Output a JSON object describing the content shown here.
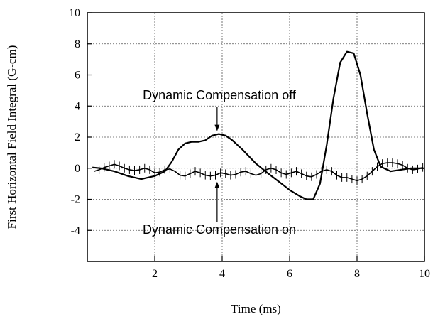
{
  "chart_data": {
    "type": "line",
    "title": "",
    "xlabel": "Time (ms)",
    "ylabel": "First Horizontal Field Integral (G-cm)",
    "xlim": [
      0,
      10
    ],
    "ylim": [
      -6,
      10
    ],
    "x_ticks": [
      2,
      4,
      6,
      8,
      10
    ],
    "x_tick_labels": [
      "2",
      "4",
      "6",
      "8",
      "10"
    ],
    "y_ticks": [
      -4,
      -2,
      0,
      2,
      4,
      6,
      8,
      10
    ],
    "y_tick_labels": [
      "-4",
      "-2",
      "0",
      "2",
      "4",
      "6",
      "8",
      "10"
    ],
    "grid": true,
    "legend": "none",
    "line_color": "#000000",
    "series": [
      {
        "marker": "none",
        "x": [
          0.15,
          0.4,
          0.8,
          1.2,
          1.6,
          2.0,
          2.3,
          2.5,
          2.7,
          2.9,
          3.1,
          3.3,
          3.5,
          3.7,
          3.9,
          4.1,
          4.3,
          4.6,
          5.0,
          5.4,
          5.7,
          6.0,
          6.3,
          6.5,
          6.7,
          6.9,
          7.1,
          7.3,
          7.5,
          7.7,
          7.9,
          8.1,
          8.3,
          8.5,
          8.7,
          9.0,
          9.3,
          9.6,
          10.0
        ],
        "y": [
          0.05,
          0.0,
          -0.2,
          -0.5,
          -0.7,
          -0.5,
          -0.2,
          0.4,
          1.2,
          1.6,
          1.7,
          1.7,
          1.8,
          2.1,
          2.2,
          2.1,
          1.8,
          1.2,
          0.3,
          -0.4,
          -0.9,
          -1.4,
          -1.8,
          -2.0,
          -2.0,
          -1.0,
          1.5,
          4.5,
          6.8,
          7.5,
          7.4,
          6.0,
          3.5,
          1.2,
          0.1,
          -0.2,
          -0.1,
          0.0,
          0.0
        ]
      },
      {
        "marker": "vertical-tick",
        "x": [
          0.2,
          0.35,
          0.5,
          0.65,
          0.8,
          0.95,
          1.1,
          1.25,
          1.4,
          1.55,
          1.7,
          1.85,
          2.0,
          2.15,
          2.3,
          2.45,
          2.6,
          2.75,
          2.9,
          3.05,
          3.2,
          3.35,
          3.5,
          3.65,
          3.8,
          3.95,
          4.1,
          4.25,
          4.4,
          4.55,
          4.7,
          4.85,
          5.0,
          5.15,
          5.3,
          5.45,
          5.6,
          5.75,
          5.9,
          6.05,
          6.2,
          6.35,
          6.5,
          6.65,
          6.8,
          6.95,
          7.1,
          7.25,
          7.4,
          7.55,
          7.7,
          7.85,
          8.0,
          8.15,
          8.3,
          8.45,
          8.6,
          8.75,
          8.9,
          9.05,
          9.2,
          9.35,
          9.5,
          9.65,
          9.8,
          9.95
        ],
        "y": [
          -0.2,
          -0.1,
          0.05,
          0.15,
          0.25,
          0.15,
          0.0,
          -0.1,
          -0.15,
          -0.1,
          0.0,
          -0.1,
          -0.3,
          -0.25,
          -0.1,
          -0.05,
          -0.2,
          -0.45,
          -0.5,
          -0.35,
          -0.2,
          -0.3,
          -0.45,
          -0.5,
          -0.45,
          -0.3,
          -0.35,
          -0.45,
          -0.4,
          -0.25,
          -0.2,
          -0.35,
          -0.45,
          -0.35,
          -0.1,
          0.0,
          -0.1,
          -0.3,
          -0.4,
          -0.3,
          -0.2,
          -0.35,
          -0.5,
          -0.55,
          -0.4,
          -0.2,
          -0.1,
          -0.2,
          -0.45,
          -0.6,
          -0.6,
          -0.7,
          -0.8,
          -0.7,
          -0.5,
          -0.2,
          0.1,
          0.3,
          0.35,
          0.35,
          0.3,
          0.2,
          0.0,
          -0.1,
          -0.05,
          0.05
        ]
      }
    ],
    "annotations": [
      {
        "text": "Dynamic Compensation off",
        "arrow_target": [
          3.85,
          2.2
        ]
      },
      {
        "text": "Dynamic Compensation on",
        "arrow_target": [
          3.85,
          -0.5
        ]
      }
    ]
  }
}
